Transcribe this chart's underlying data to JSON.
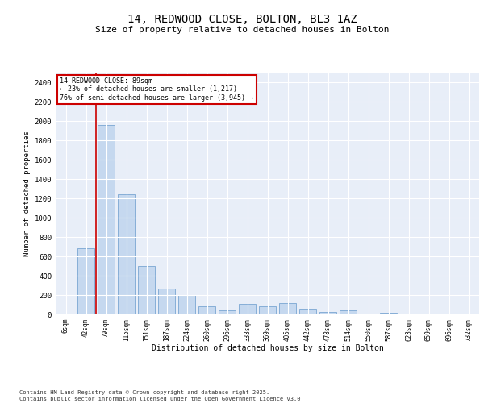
{
  "title_line1": "14, REDWOOD CLOSE, BOLTON, BL3 1AZ",
  "title_line2": "Size of property relative to detached houses in Bolton",
  "xlabel": "Distribution of detached houses by size in Bolton",
  "ylabel": "Number of detached properties",
  "categories": [
    "6sqm",
    "42sqm",
    "79sqm",
    "115sqm",
    "151sqm",
    "187sqm",
    "224sqm",
    "260sqm",
    "296sqm",
    "333sqm",
    "369sqm",
    "405sqm",
    "442sqm",
    "478sqm",
    "514sqm",
    "550sqm",
    "587sqm",
    "623sqm",
    "659sqm",
    "696sqm",
    "732sqm"
  ],
  "values": [
    10,
    680,
    1960,
    1240,
    500,
    270,
    200,
    80,
    40,
    110,
    80,
    120,
    60,
    25,
    40,
    10,
    15,
    5,
    0,
    0,
    5
  ],
  "bar_color": "#c5d8ef",
  "bar_edge_color": "#6699cc",
  "vline_x_index": 2,
  "vline_color": "#cc0000",
  "annotation_box_text": "14 REDWOOD CLOSE: 89sqm\n← 23% of detached houses are smaller (1,217)\n76% of semi-detached houses are larger (3,945) →",
  "background_color": "#e8eef8",
  "grid_color": "#ffffff",
  "footer_text": "Contains HM Land Registry data © Crown copyright and database right 2025.\nContains public sector information licensed under the Open Government Licence v3.0.",
  "ylim": [
    0,
    2500
  ],
  "yticks": [
    0,
    200,
    400,
    600,
    800,
    1000,
    1200,
    1400,
    1600,
    1800,
    2000,
    2200,
    2400
  ]
}
